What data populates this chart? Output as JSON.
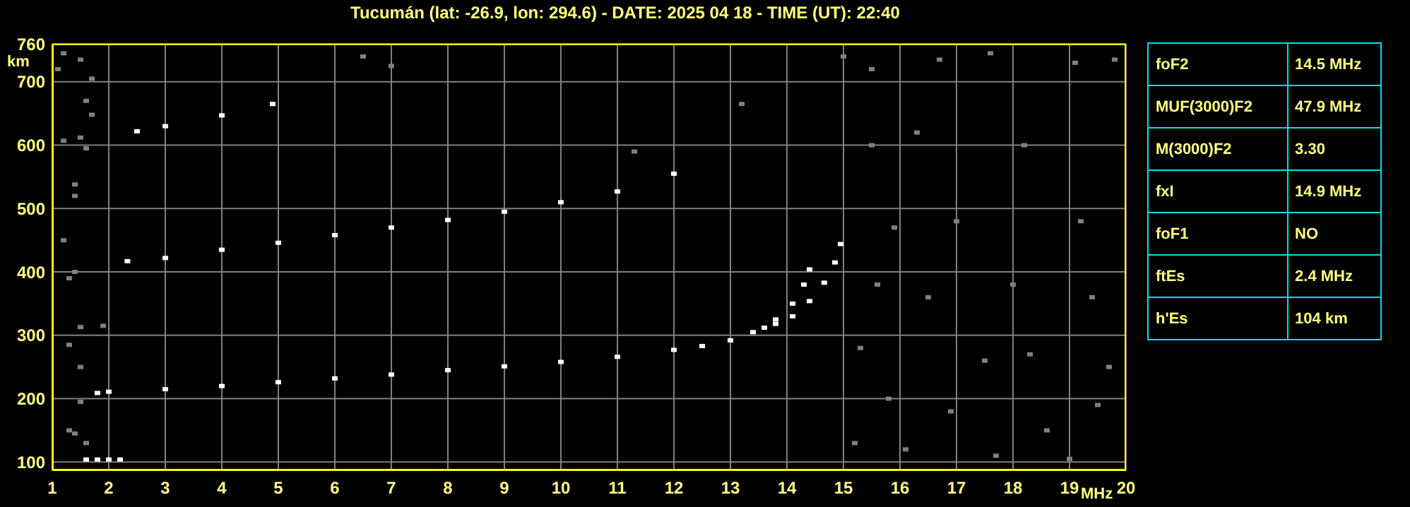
{
  "chart_data": [
    {
      "type": "scatter",
      "title": "Tucumán (lat: -26.9, lon: 294.6) - DATE: 2025 04 18 - TIME (UT): 22:40",
      "xlabel": "MHz",
      "ylabel": "km",
      "xlim": [
        1,
        20
      ],
      "xticks": [
        1,
        2,
        3,
        4,
        5,
        6,
        7,
        8,
        9,
        10,
        11,
        12,
        13,
        14,
        15,
        16,
        17,
        18,
        19,
        20
      ],
      "ylim": [
        87,
        760
      ],
      "yticks": [
        100,
        200,
        300,
        400,
        500,
        600,
        700,
        760
      ],
      "grid": true,
      "marker": "square",
      "series": [
        {
          "color": "#ffffff",
          "x": [
            1.8,
            2,
            3,
            4,
            5,
            6,
            7,
            8,
            9,
            10,
            11,
            12,
            12.5,
            13,
            13.4,
            13.8,
            14.1,
            14.3,
            14.4
          ],
          "values": [
            209,
            211,
            215,
            220,
            226,
            232,
            238,
            245,
            251,
            258,
            266,
            277,
            283,
            292,
            305,
            325,
            350,
            380,
            404
          ]
        },
        {
          "color": "#ffffff",
          "x": [
            13.6,
            13.8,
            14.1,
            14.4,
            14.66,
            14.85,
            14.95
          ],
          "values": [
            312,
            318,
            330,
            354,
            383,
            415,
            444
          ]
        },
        {
          "color": "#ffffff",
          "x": [
            2.33,
            3,
            4,
            5,
            6,
            7,
            8,
            9,
            10,
            11,
            12
          ],
          "values": [
            417,
            422,
            435,
            446,
            458,
            470,
            482,
            495,
            510,
            527,
            555
          ]
        },
        {
          "color": "#ffffff",
          "x": [
            2.5,
            3,
            4,
            4.9
          ],
          "values": [
            622,
            630,
            647,
            665
          ]
        },
        {
          "color": "#ffffff",
          "x": [
            1.6,
            1.8,
            2,
            2.2
          ],
          "values": [
            104,
            104,
            104,
            104
          ]
        },
        {
          "color": "#808080",
          "x": [
            1.2,
            1.1,
            1.5,
            1.7,
            1.6,
            1.7,
            1.5,
            1.2,
            1.6,
            1.4,
            1.4,
            1.2,
            1.4,
            1.3,
            1.5,
            1.9,
            1.3,
            1.5,
            1.5,
            1.3,
            1.4,
            1.6,
            6.5,
            7,
            13.2,
            15,
            15.5,
            16.7,
            17.6,
            19.1,
            19.8,
            15.5,
            16.3,
            18.2,
            15.9,
            17,
            19.2,
            15.6,
            16.5,
            18,
            19.4,
            15.3,
            17.5,
            18.3,
            19.7,
            15.8,
            16.9,
            18.6,
            19.5,
            15.2,
            16.1,
            17.7,
            19,
            11.3
          ],
          "values": [
            745,
            720,
            735,
            705,
            670,
            648,
            612,
            607,
            595,
            538,
            520,
            450,
            400,
            390,
            313,
            315,
            285,
            250,
            195,
            150,
            145,
            130,
            740,
            725,
            665,
            740,
            720,
            735,
            745,
            730,
            735,
            600,
            620,
            600,
            470,
            480,
            480,
            380,
            360,
            380,
            360,
            280,
            260,
            270,
            250,
            200,
            180,
            150,
            190,
            130,
            120,
            110,
            105,
            590
          ]
        }
      ]
    },
    {
      "type": "other",
      "annotations": [
        "foF2",
        "14.5 MHz",
        "MUF(3000)F2",
        "47.9 MHz",
        "M(3000)F2",
        "3.30",
        "fxI",
        "14.9 MHz",
        "foF1",
        "NO",
        "ftEs",
        "2.4 MHz",
        "h'Es",
        "104 km"
      ]
    }
  ]
}
